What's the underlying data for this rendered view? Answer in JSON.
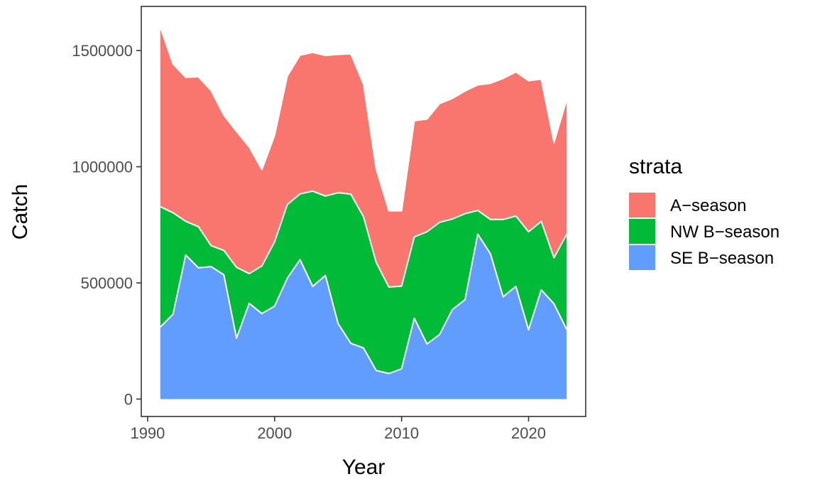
{
  "chart_data": {
    "type": "area",
    "stacked": true,
    "xlabel": "Year",
    "ylabel": "Catch",
    "xlim": [
      1989.5,
      2024.5
    ],
    "ylim": [
      -75000,
      1690000
    ],
    "x_ticks": [
      1990,
      2000,
      2010,
      2020
    ],
    "x_tick_labels": [
      "1990",
      "2000",
      "2010",
      "2020"
    ],
    "y_ticks": [
      0,
      500000,
      1000000,
      1500000
    ],
    "y_tick_labels": [
      "0",
      "500000",
      "1000000",
      "1500000"
    ],
    "grid": false,
    "legend": {
      "title": "strata",
      "position": "right"
    },
    "x": [
      1991,
      1992,
      1993,
      1994,
      1995,
      1996,
      1997,
      1998,
      1999,
      2000,
      2001,
      2002,
      2003,
      2004,
      2005,
      2006,
      2007,
      2008,
      2009,
      2010,
      2011,
      2012,
      2013,
      2014,
      2015,
      2016,
      2017,
      2018,
      2019,
      2020,
      2021,
      2022,
      2023
    ],
    "series": [
      {
        "name": "SE B-season",
        "color": "#619cff",
        "values": [
          310000,
          365000,
          620000,
          565000,
          570000,
          535000,
          262000,
          412000,
          368000,
          400000,
          520000,
          600000,
          485000,
          532000,
          325000,
          240000,
          220000,
          123000,
          110000,
          130000,
          348000,
          237000,
          278000,
          385000,
          428000,
          710000,
          625000,
          440000,
          485000,
          298000,
          470000,
          410000,
          300000
        ]
      },
      {
        "name": "NW B-season",
        "color": "#00ba38",
        "values": [
          518000,
          437000,
          145000,
          177000,
          90000,
          105000,
          305000,
          128000,
          205000,
          277000,
          317000,
          283000,
          410000,
          342000,
          563000,
          642000,
          565000,
          465000,
          372000,
          356000,
          350000,
          483000,
          483000,
          390000,
          370000,
          102000,
          148000,
          333000,
          303000,
          422000,
          295000,
          198000,
          409000
        ]
      },
      {
        "name": "A-season",
        "color": "#f8766d",
        "values": [
          772000,
          640000,
          620000,
          645000,
          668000,
          582000,
          585000,
          545000,
          415000,
          458000,
          553000,
          597000,
          597000,
          605000,
          595000,
          604000,
          570000,
          402000,
          328000,
          324000,
          500000,
          485000,
          511000,
          519000,
          528000,
          540000,
          586000,
          607000,
          620000,
          650000,
          612000,
          496000,
          579000
        ]
      }
    ],
    "stack_order": [
      "SE B-season",
      "NW B-season",
      "A-season"
    ],
    "legend_order": [
      "A-season",
      "NW B-season",
      "SE B-season"
    ]
  }
}
